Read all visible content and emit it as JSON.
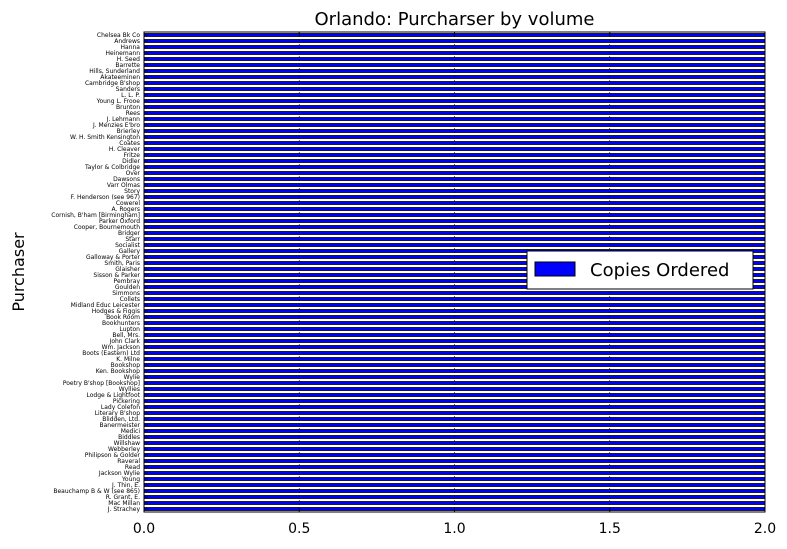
{
  "chart_data": {
    "type": "bar",
    "orientation": "horizontal",
    "title": "Orlando: Purcharser by volume",
    "xlabel": "",
    "ylabel": "Purchaser",
    "xlim": [
      0,
      2.0
    ],
    "x_ticks": [
      "0.0",
      "0.5",
      "1.0",
      "1.5",
      "2.0"
    ],
    "grid": true,
    "legend_position": "center-right",
    "colors": {
      "bar": "#0000ff",
      "edge": "#000000"
    },
    "categories": [
      "J. Strachey",
      "Mac Millan",
      "R. Grant, E.",
      "Beauchamp B & W (see 865)",
      "J. Thin, E.",
      "Young",
      "Jackson Wylie",
      "Read",
      "Raveral",
      "Philipson & Golder",
      "Webberley",
      "Willshaw",
      "Biddles",
      "Medici",
      "Banermeister",
      "Blidden, Ltd.",
      "Literary B'shop",
      "Lady Colefon",
      "Pickering",
      "Lodge & Lightfoot",
      "Wyllies",
      "Poetry B'shop [Bookshop]",
      "Wylie",
      "Ken. Bookshop",
      "Bookshop",
      "K. Milne",
      "Boots (Eastern) Ltd",
      "Wm. Jackson",
      "John Clark",
      "Bell, Mrs.",
      "Lupton",
      "Bookhunters",
      "Book Room",
      "Hodges & Figgis",
      "Midland Educ Leicester",
      "Collets",
      "Simmons",
      "Goulden",
      "Pembray",
      "Sisson & Parker",
      "Glaisher",
      "Smith, Paris",
      "Galloway & Porter",
      "Gallery",
      "Socialist",
      "Starr",
      "Bridger",
      "Cooper, Bournemouth",
      "Parker Oxford",
      "Cornish, B'ham [Birmingham]",
      "A. Rogers",
      "Cowerel",
      "F. Henderson (see 967)",
      "Story",
      "Varr Olmas",
      "Dawsons",
      "Over",
      "Taylor & Colbridge",
      "Didler",
      "Fritze",
      "H. Cleaver",
      "Coates",
      "W. H. Smith Kensington",
      "Brierley",
      "J. Menzies E'bro",
      "J. Lehmann",
      "Rees",
      "Brunton",
      "Young L. Frooe",
      "L. L. P.",
      "Sanders",
      "Cambridge B'shop",
      "Akateeminen",
      "Hills, Sunderland",
      "Barrette",
      "H. Seed",
      "Heinemann",
      "Hanna",
      "Andrews",
      "Chelsea Bk Co"
    ],
    "series": [
      {
        "name": "Copies Ordered",
        "values": [
          2,
          2,
          2,
          2,
          2,
          2,
          2,
          2,
          2,
          2,
          2,
          2,
          2,
          2,
          2,
          2,
          2,
          2,
          2,
          2,
          2,
          2,
          2,
          2,
          2,
          2,
          2,
          2,
          2,
          2,
          2,
          2,
          2,
          2,
          2,
          2,
          2,
          2,
          2,
          2,
          2,
          2,
          2,
          2,
          2,
          2,
          2,
          2,
          2,
          2,
          2,
          2,
          2,
          2,
          2,
          2,
          2,
          2,
          2,
          2,
          2,
          2,
          2,
          2,
          2,
          2,
          2,
          2,
          2,
          2,
          2,
          2,
          2,
          2,
          2,
          2,
          2,
          2,
          2,
          2
        ]
      }
    ]
  }
}
